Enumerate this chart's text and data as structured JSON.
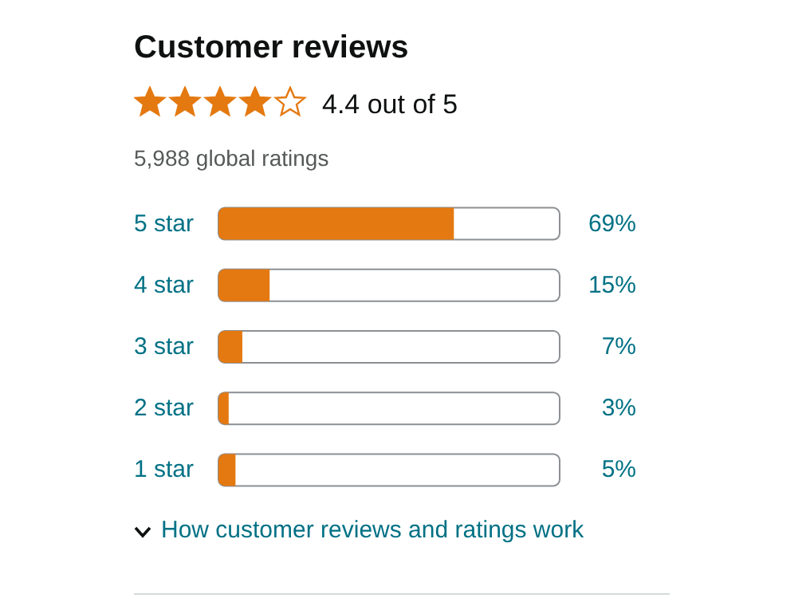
{
  "chart_data": {
    "type": "bar",
    "orientation": "horizontal",
    "title": "Customer reviews",
    "subtitle": "4.4 out of 5",
    "annotations": [
      "5,988 global ratings",
      "How customer reviews and ratings work"
    ],
    "categories": [
      "5 star",
      "4 star",
      "3 star",
      "2 star",
      "1 star"
    ],
    "values": [
      69,
      15,
      7,
      3,
      5
    ],
    "value_labels": [
      "69%",
      "15%",
      "7%",
      "3%",
      "5%"
    ],
    "color": "#e47911",
    "xlim": [
      0,
      100
    ],
    "tick_labels": "y"
  }
}
